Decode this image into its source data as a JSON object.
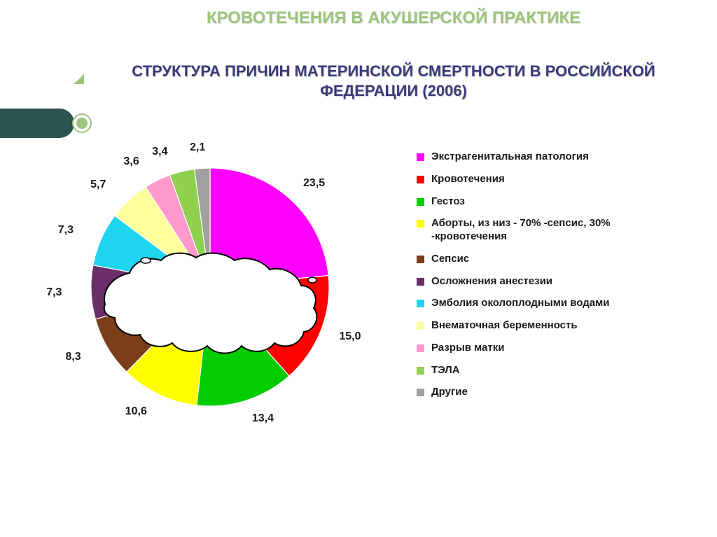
{
  "header": {
    "supertitle": "КРОВОТЕЧЕНИЯ В АКУШЕРСКОЙ ПРАКТИКЕ",
    "title": "СТРУКТУРА ПРИЧИН МАТЕРИНСКОЙ СМЕРТНОСТИ В РОССИЙСКОЙ ФЕДЕРАЦИИ (2006)"
  },
  "decor": {
    "arc_color": "#9cc47b",
    "bar_color": "#2a544f"
  },
  "chart": {
    "type": "pie",
    "start_angle_deg": -90,
    "background_color": "#ffffff",
    "slice_border_color": "#ffffff",
    "label_fontsize": 16,
    "label_color": "#1a1a1a",
    "label_weight": "bold",
    "overlay": {
      "type": "russia-map-silhouette",
      "fill": "#ffffff",
      "stroke": "#000000",
      "stroke_width": 2
    },
    "slices": [
      {
        "label": "Экстрагенитальная патология",
        "value": 23.5,
        "value_text": "23,5",
        "color": "#ff00ff"
      },
      {
        "label": "Кровотечения",
        "value": 15.0,
        "value_text": "15,0",
        "color": "#ff0000"
      },
      {
        "label": "Гестоз",
        "value": 13.4,
        "value_text": "13,4",
        "color": "#00cc00"
      },
      {
        "label": "Аборты, из низ - 70% -сепсис, 30% -кровотечения",
        "value": 10.6,
        "value_text": "10,6",
        "color": "#ffff00"
      },
      {
        "label": "Сепсис",
        "value": 8.3,
        "value_text": "8,3",
        "color": "#7a3e1a"
      },
      {
        "label": "Осложнения анестезии",
        "value": 7.3,
        "value_text": "7,3",
        "color": "#6a2f6a"
      },
      {
        "label": "Эмболия околоплодными водами",
        "value": 7.3,
        "value_text": "7,3",
        "color": "#1fd4f0"
      },
      {
        "label": "Внематочная беременность",
        "value": 5.7,
        "value_text": "5,7",
        "color": "#ffff9e"
      },
      {
        "label": "Разрыв матки",
        "value": 3.6,
        "value_text": "3,6",
        "color": "#ff99cc"
      },
      {
        "label": "ТЭЛА",
        "value": 3.4,
        "value_text": "3,4",
        "color": "#8fd14f"
      },
      {
        "label": "Другие",
        "value": 2.1,
        "value_text": "2,1",
        "color": "#a0a0a0"
      }
    ]
  },
  "legend": {
    "fontsize": 15,
    "swatch_size": 11,
    "color": "#1a1a1a"
  }
}
